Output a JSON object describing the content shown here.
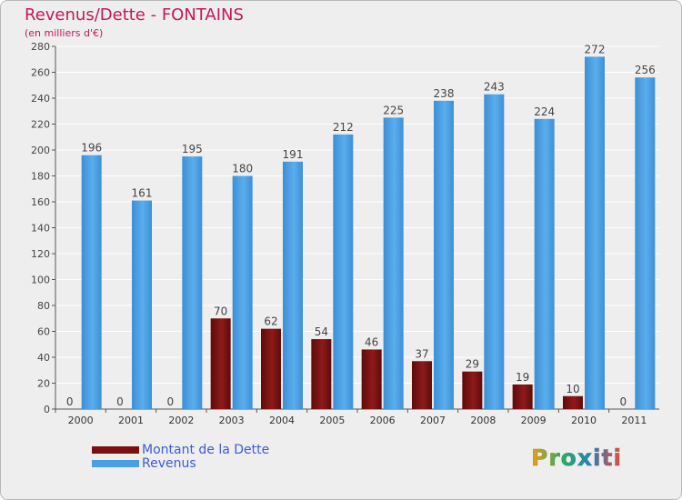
{
  "chart_data": {
    "type": "bar",
    "title": "Revenus/Dette - FONTAINS",
    "subtitle": "(en milliers d'€)",
    "categories": [
      "2000",
      "2001",
      "2002",
      "2003",
      "2004",
      "2005",
      "2006",
      "2007",
      "2008",
      "2009",
      "2010",
      "2011"
    ],
    "series": [
      {
        "name": "Montant de la Dette",
        "color": "#7a0f0f",
        "values": [
          0,
          0,
          0,
          70,
          62,
          54,
          46,
          37,
          29,
          19,
          10,
          0
        ]
      },
      {
        "name": "Revenus",
        "color": "#4a9fe3",
        "values": [
          196,
          161,
          195,
          180,
          191,
          212,
          225,
          238,
          243,
          224,
          272,
          256
        ]
      }
    ],
    "ylim": [
      0,
      280
    ],
    "ytick_step": 20,
    "grid": true,
    "legend_position": "bottom-left"
  },
  "logo": {
    "text": "Proxiti"
  }
}
